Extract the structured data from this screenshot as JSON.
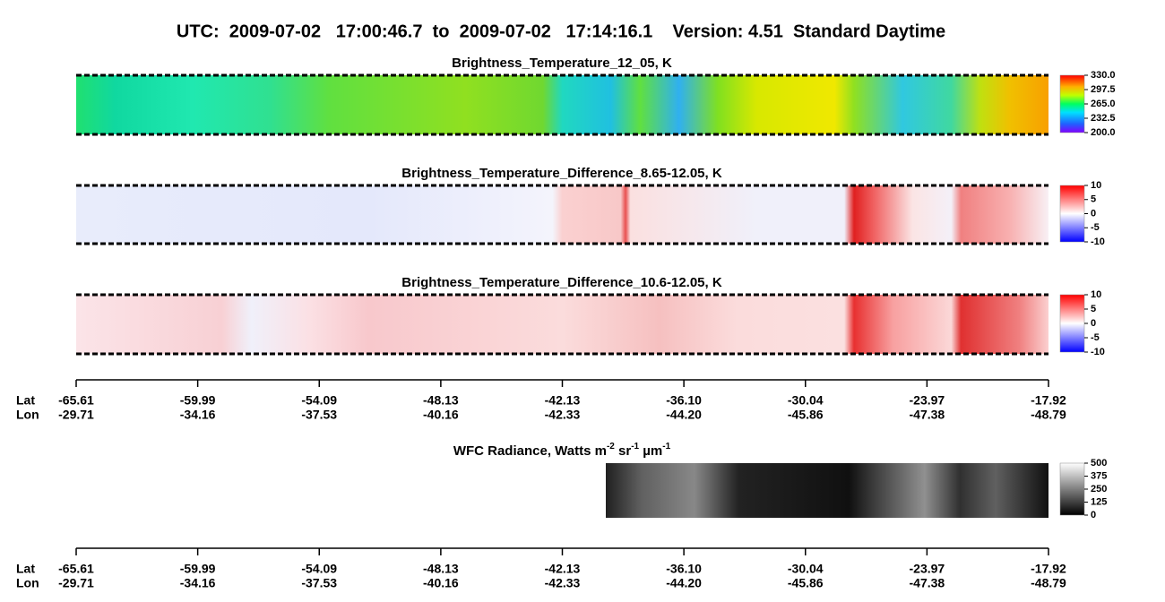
{
  "header": {
    "title": "UTC:  2009-07-02   17:00:46.7  to  2009-07-02   17:14:16.1    Version: 4.51  Standard Daytime"
  },
  "panels": [
    {
      "title": "Brightness_Temperature_12_05, K",
      "colorbar_ticks": [
        "330.0",
        "297.5",
        "265.0",
        "232.5",
        "200.0"
      ]
    },
    {
      "title": "Brightness_Temperature_Difference_8.65-12.05, K",
      "colorbar_ticks": [
        "10",
        "5",
        "0",
        "-5",
        "-10"
      ]
    },
    {
      "title": "Brightness_Temperature_Difference_10.6-12.05, K",
      "colorbar_ticks": [
        "10",
        "5",
        "0",
        "-5",
        "-10"
      ]
    }
  ],
  "wfc": {
    "title": [
      {
        "text": "WFC Radiance, Watts m"
      },
      {
        "text": "-2",
        "sup": true
      },
      {
        "text": " sr"
      },
      {
        "text": "-1",
        "sup": true
      },
      {
        "text": " µm"
      },
      {
        "text": "-1",
        "sup": true
      }
    ],
    "colorbar_ticks": [
      "500",
      "375",
      "250",
      "125",
      "0"
    ]
  },
  "axes": [
    {
      "rows": [
        {
          "label": "Lat",
          "values": [
            "-65.61",
            "-59.99",
            "-54.09",
            "-48.13",
            "-42.13",
            "-36.10",
            "-30.04",
            "-23.97",
            "-17.92"
          ]
        },
        {
          "label": "Lon",
          "values": [
            "-29.71",
            "-34.16",
            "-37.53",
            "-40.16",
            "-42.33",
            "-44.20",
            "-45.86",
            "-47.38",
            "-48.79"
          ]
        }
      ]
    },
    {
      "rows": [
        {
          "label": "Lat",
          "values": [
            "-65.61",
            "-59.99",
            "-54.09",
            "-48.13",
            "-42.13",
            "-36.10",
            "-30.04",
            "-23.97",
            "-17.92"
          ]
        },
        {
          "label": "Lon",
          "values": [
            "-29.71",
            "-34.16",
            "-37.53",
            "-40.16",
            "-42.33",
            "-44.20",
            "-45.86",
            "-47.38",
            "-48.79"
          ]
        }
      ]
    }
  ]
}
